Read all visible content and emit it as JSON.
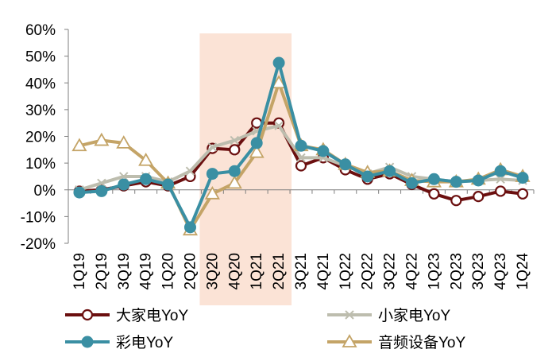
{
  "chart_data": {
    "type": "line",
    "categories": [
      "1Q19",
      "2Q19",
      "3Q19",
      "4Q19",
      "1Q20",
      "2Q20",
      "3Q20",
      "4Q20",
      "1Q21",
      "2Q21",
      "3Q21",
      "4Q21",
      "1Q22",
      "2Q22",
      "3Q22",
      "4Q22",
      "1Q23",
      "2Q23",
      "3Q23",
      "4Q23",
      "1Q24"
    ],
    "y_ticks": [
      "60%",
      "50%",
      "40%",
      "30%",
      "20%",
      "10%",
      "0%",
      "-10%",
      "-20%"
    ],
    "ylim": [
      -20,
      60
    ],
    "y_unit": "%",
    "grid": false,
    "legend_position": "bottom",
    "highlight_range": [
      "3Q20",
      "2Q21"
    ],
    "colors": {
      "highlight": "#fbe3d6",
      "axis": "#7f7f7f"
    },
    "series": [
      {
        "name": "大家电YoY",
        "color": "#6b0f0f",
        "marker": "circle-open",
        "values": [
          -0.5,
          0,
          1.5,
          3,
          1.5,
          5,
          15.5,
          15,
          25,
          25,
          9,
          12,
          7.5,
          4,
          6,
          2,
          -1.5,
          -4,
          -2.5,
          -0.5,
          -1.5
        ]
      },
      {
        "name": "小家电YoY",
        "color": "#bdbdae",
        "marker": "x",
        "values": [
          0,
          2.5,
          5,
          5,
          3,
          7,
          16,
          18.5,
          22,
          24,
          12,
          12,
          9,
          6,
          8.5,
          5,
          4,
          3,
          3.5,
          4,
          3.5
        ]
      },
      {
        "name": "彩电YoY",
        "color": "#3a8fa3",
        "marker": "circle-filled",
        "values": [
          -1,
          -0.5,
          2,
          4,
          2,
          -14,
          6,
          7,
          17.5,
          47.5,
          16.5,
          14.5,
          9.5,
          5,
          7,
          2.5,
          4,
          3,
          3.5,
          7,
          4.5
        ]
      },
      {
        "name": "音频设备YoY",
        "color": "#c4a467",
        "marker": "triangle-open",
        "values": [
          16.5,
          18.5,
          17.5,
          11,
          2.5,
          -15,
          -1.5,
          2.5,
          14,
          40,
          16.5,
          15,
          9.5,
          6.5,
          7,
          3.5,
          3,
          3,
          4,
          7.5,
          5
        ]
      }
    ]
  }
}
